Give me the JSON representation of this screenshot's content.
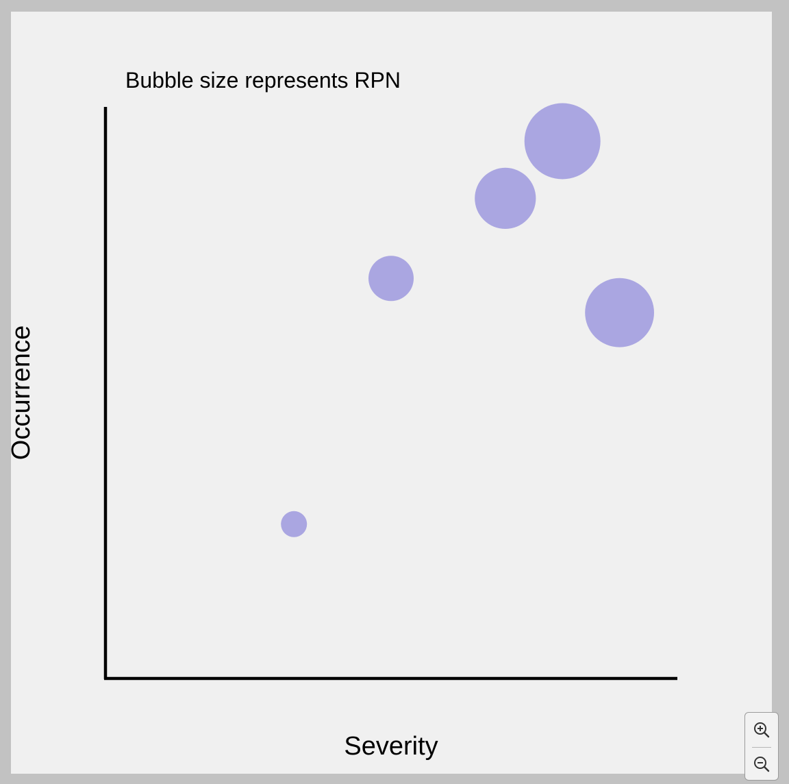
{
  "chart_data": {
    "type": "scatter",
    "title": "Bubble size represents RPN",
    "xlabel": "Severity",
    "ylabel": "Occurrence",
    "xlim": [
      0,
      10
    ],
    "ylim": [
      0,
      10
    ],
    "grid": false,
    "points": [
      {
        "x": 3.3,
        "y": 2.7,
        "size": 20
      },
      {
        "x": 5.0,
        "y": 7.0,
        "size": 60
      },
      {
        "x": 7.0,
        "y": 8.4,
        "size": 110
      },
      {
        "x": 8.0,
        "y": 9.4,
        "size": 170
      },
      {
        "x": 9.0,
        "y": 6.4,
        "size": 140
      }
    ],
    "colors": {
      "bubble": "#aaa6e1",
      "axis": "#000000"
    }
  },
  "controls": {
    "zoom_in_icon": "zoom-in-icon",
    "zoom_out_icon": "zoom-out-icon"
  }
}
